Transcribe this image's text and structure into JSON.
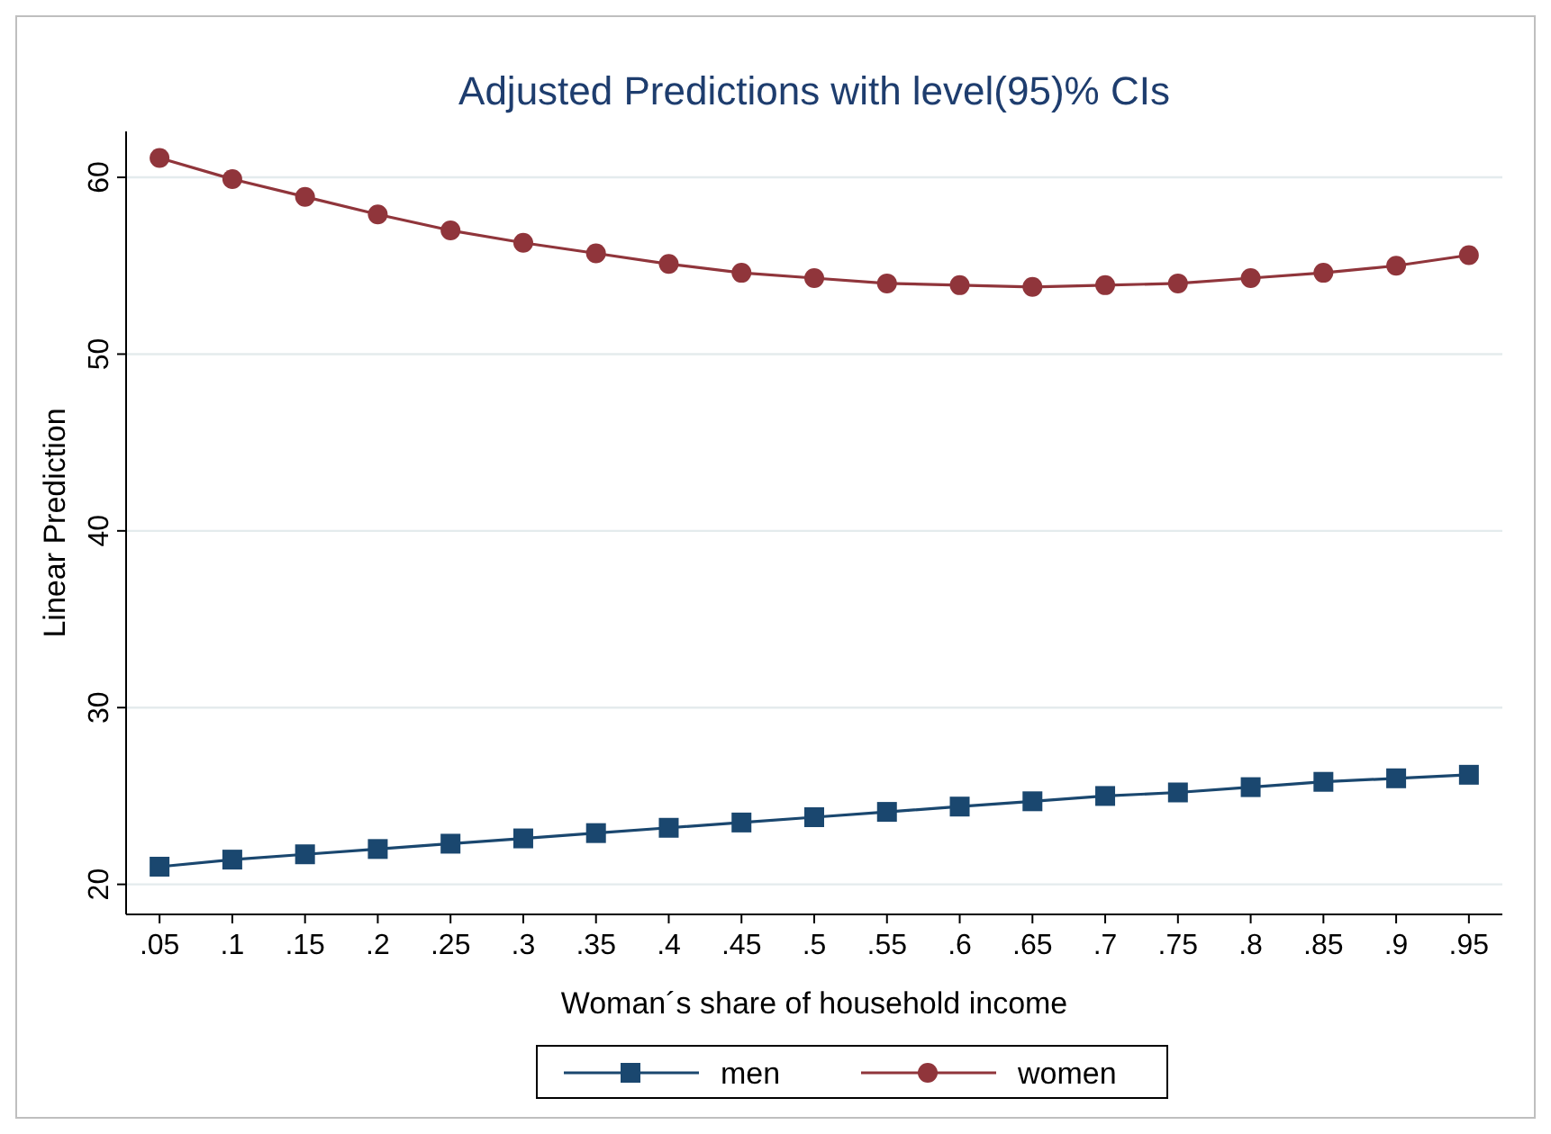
{
  "chart_data": {
    "type": "line",
    "title": "Adjusted Predictions with level(95)% CIs",
    "xlabel": "Woman´s share of household income",
    "ylabel": "Linear Prediction",
    "x": [
      0.05,
      0.1,
      0.15,
      0.2,
      0.25,
      0.3,
      0.35,
      0.4,
      0.45,
      0.5,
      0.55,
      0.6,
      0.65,
      0.7,
      0.75,
      0.8,
      0.85,
      0.9,
      0.95
    ],
    "series": [
      {
        "name": "men",
        "color": "#1a476f",
        "marker": "square",
        "values": [
          21.0,
          21.4,
          21.7,
          22.0,
          22.3,
          22.6,
          22.9,
          23.2,
          23.5,
          23.8,
          24.1,
          24.4,
          24.7,
          25.0,
          25.2,
          25.5,
          25.8,
          26.0,
          26.2
        ]
      },
      {
        "name": "women",
        "color": "#90353b",
        "marker": "circle",
        "values": [
          61.1,
          59.9,
          58.9,
          57.9,
          57.0,
          56.3,
          55.7,
          55.1,
          54.6,
          54.3,
          54.0,
          53.9,
          53.8,
          53.9,
          54.0,
          54.3,
          54.6,
          55.0,
          55.6
        ]
      }
    ],
    "xlim": [
      0.027,
      0.973
    ],
    "ylim": [
      18.3,
      62.6
    ],
    "xticks": [
      {
        "value": 0.05,
        "label": ".05"
      },
      {
        "value": 0.1,
        "label": ".1"
      },
      {
        "value": 0.15,
        "label": ".15"
      },
      {
        "value": 0.2,
        "label": ".2"
      },
      {
        "value": 0.25,
        "label": ".25"
      },
      {
        "value": 0.3,
        "label": ".3"
      },
      {
        "value": 0.35,
        "label": ".35"
      },
      {
        "value": 0.4,
        "label": ".4"
      },
      {
        "value": 0.45,
        "label": ".45"
      },
      {
        "value": 0.5,
        "label": ".5"
      },
      {
        "value": 0.55,
        "label": ".55"
      },
      {
        "value": 0.6,
        "label": ".6"
      },
      {
        "value": 0.65,
        "label": ".65"
      },
      {
        "value": 0.7,
        "label": ".7"
      },
      {
        "value": 0.75,
        "label": ".75"
      },
      {
        "value": 0.8,
        "label": ".8"
      },
      {
        "value": 0.85,
        "label": ".85"
      },
      {
        "value": 0.9,
        "label": ".9"
      },
      {
        "value": 0.95,
        "label": ".95"
      }
    ],
    "yticks": [
      20,
      30,
      40,
      50,
      60
    ],
    "grid": "y",
    "legend": "bottom",
    "line_style": "solid"
  }
}
